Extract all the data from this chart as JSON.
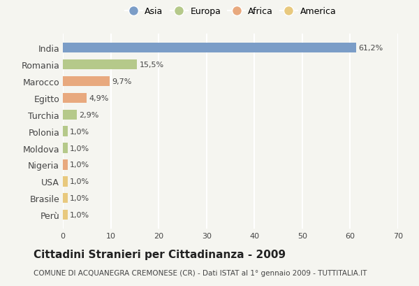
{
  "countries": [
    "India",
    "Romania",
    "Marocco",
    "Egitto",
    "Turchia",
    "Polonia",
    "Moldova",
    "Nigeria",
    "USA",
    "Brasile",
    "Perù"
  ],
  "values": [
    61.2,
    15.5,
    9.7,
    4.9,
    2.9,
    1.0,
    1.0,
    1.0,
    1.0,
    1.0,
    1.0
  ],
  "labels": [
    "61,2%",
    "15,5%",
    "9,7%",
    "4,9%",
    "2,9%",
    "1,0%",
    "1,0%",
    "1,0%",
    "1,0%",
    "1,0%",
    "1,0%"
  ],
  "colors": [
    "#7b9dc7",
    "#b5c98a",
    "#e8a97e",
    "#e8a97e",
    "#b5c98a",
    "#b5c98a",
    "#b5c98a",
    "#e8a97e",
    "#e8c97e",
    "#e8c97e",
    "#e8c97e"
  ],
  "legend": [
    {
      "label": "Asia",
      "color": "#7b9dc7"
    },
    {
      "label": "Europa",
      "color": "#b5c98a"
    },
    {
      "label": "Africa",
      "color": "#e8a97e"
    },
    {
      "label": "America",
      "color": "#e8c97e"
    }
  ],
  "xlim": [
    0,
    70
  ],
  "xticks": [
    0,
    10,
    20,
    30,
    40,
    50,
    60,
    70
  ],
  "title": "Cittadini Stranieri per Cittadinanza - 2009",
  "subtitle": "COMUNE DI ACQUANEGRA CREMONESE (CR) - Dati ISTAT al 1° gennaio 2009 - TUTTITALIA.IT",
  "bg_color": "#f5f5f0",
  "grid_color": "#ffffff"
}
